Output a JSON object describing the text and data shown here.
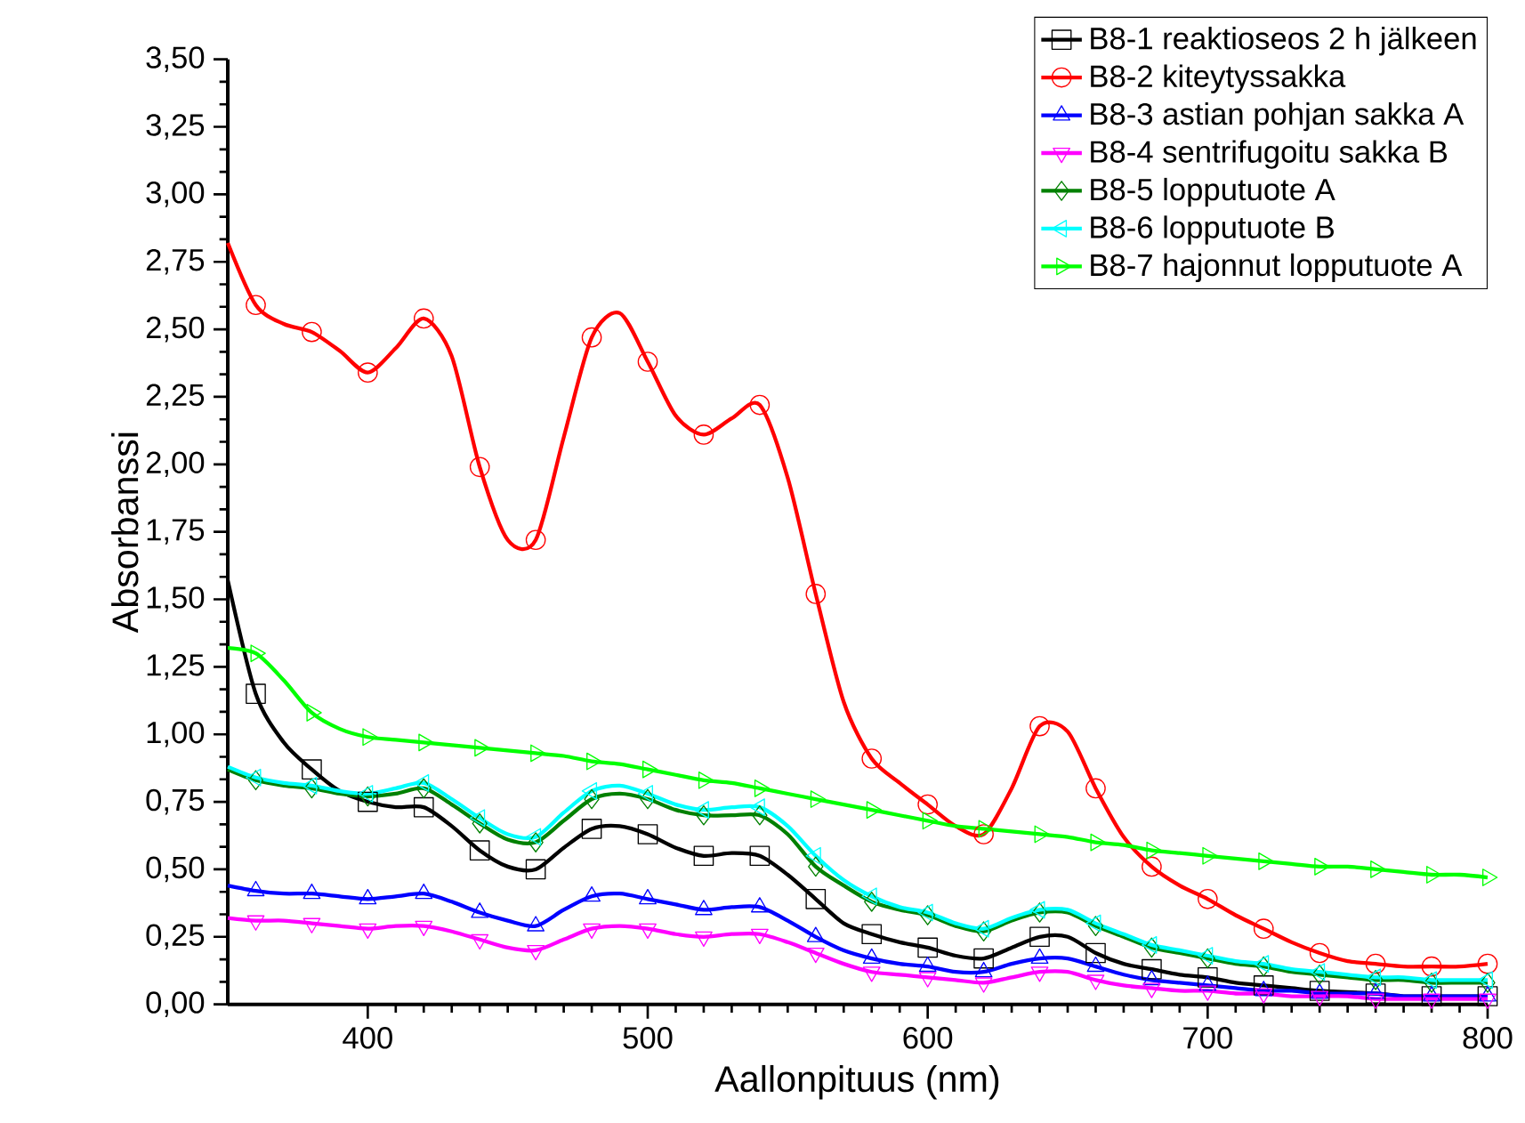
{
  "chart_data": {
    "type": "line",
    "xlabel": "Aallonpituus (nm)",
    "ylabel": "Absorbanssi",
    "x": [
      350,
      360,
      370,
      380,
      390,
      400,
      410,
      420,
      430,
      440,
      450,
      460,
      470,
      480,
      490,
      500,
      510,
      520,
      530,
      540,
      550,
      560,
      570,
      580,
      590,
      600,
      610,
      620,
      630,
      640,
      650,
      660,
      670,
      680,
      690,
      700,
      710,
      720,
      730,
      740,
      750,
      760,
      770,
      780,
      790,
      800
    ],
    "series": [
      {
        "name": "B8-1 reaktioseos 2 h jälkeen",
        "color": "#000000",
        "marker": "square",
        "values": [
          1.57,
          1.15,
          0.97,
          0.87,
          0.79,
          0.75,
          0.73,
          0.73,
          0.66,
          0.57,
          0.51,
          0.5,
          0.58,
          0.65,
          0.66,
          0.63,
          0.58,
          0.55,
          0.56,
          0.55,
          0.48,
          0.39,
          0.3,
          0.26,
          0.23,
          0.21,
          0.18,
          0.17,
          0.21,
          0.25,
          0.25,
          0.19,
          0.15,
          0.13,
          0.11,
          0.1,
          0.08,
          0.07,
          0.06,
          0.05,
          null,
          0.04,
          0.03,
          0.03,
          0.03,
          0.03
        ]
      },
      {
        "name": "B8-2 kiteytyssakka",
        "color": "#ff0000",
        "marker": "circle",
        "values": [
          2.82,
          2.59,
          2.52,
          2.49,
          2.42,
          2.34,
          2.43,
          2.54,
          2.4,
          1.99,
          1.72,
          1.72,
          2.1,
          2.47,
          2.56,
          2.38,
          2.18,
          2.11,
          2.17,
          2.22,
          1.95,
          1.52,
          1.12,
          0.91,
          0.82,
          0.74,
          0.66,
          0.63,
          0.8,
          1.03,
          1.01,
          0.8,
          0.62,
          0.51,
          0.44,
          0.39,
          0.33,
          0.28,
          0.23,
          0.19,
          0.16,
          0.15,
          0.14,
          0.14,
          0.14,
          0.15
        ]
      },
      {
        "name": "B8-3 astian pohjan sakka A",
        "color": "#0000ff",
        "marker": "triangle",
        "values": [
          0.44,
          0.42,
          0.41,
          0.41,
          0.4,
          0.39,
          0.4,
          0.41,
          0.38,
          0.34,
          0.31,
          0.29,
          0.35,
          0.4,
          0.41,
          0.39,
          0.37,
          0.35,
          0.36,
          0.36,
          0.31,
          0.25,
          0.2,
          0.17,
          0.15,
          0.14,
          0.12,
          0.12,
          0.15,
          0.17,
          0.17,
          0.14,
          0.11,
          0.09,
          0.08,
          0.07,
          0.06,
          0.05,
          0.05,
          0.04,
          0.04,
          0.04,
          0.03,
          0.03,
          0.03,
          0.03
        ]
      },
      {
        "name": "B8-4 sentrifugoitu sakka B",
        "color": "#ff00ff",
        "marker": "triangle-down",
        "values": [
          0.32,
          0.31,
          0.31,
          0.3,
          0.29,
          0.28,
          0.29,
          0.29,
          0.27,
          0.24,
          0.21,
          0.2,
          0.24,
          0.28,
          0.29,
          0.28,
          0.26,
          0.25,
          0.26,
          0.26,
          0.23,
          0.19,
          0.15,
          0.12,
          0.11,
          0.1,
          0.09,
          0.08,
          0.1,
          0.12,
          0.12,
          0.09,
          0.07,
          0.06,
          0.05,
          0.05,
          0.04,
          0.04,
          0.03,
          0.03,
          0.03,
          0.02,
          0.02,
          0.02,
          0.02,
          0.02
        ]
      },
      {
        "name": "B8-5 lopputuote A",
        "color": "#008000",
        "marker": "diamond",
        "values": [
          0.87,
          0.83,
          0.81,
          0.8,
          0.78,
          0.77,
          0.78,
          0.8,
          0.74,
          0.67,
          0.61,
          0.6,
          0.68,
          0.76,
          0.78,
          0.76,
          0.72,
          0.7,
          0.7,
          0.7,
          0.63,
          0.51,
          0.44,
          0.38,
          0.35,
          0.33,
          0.29,
          0.27,
          0.31,
          0.34,
          0.34,
          0.29,
          0.25,
          0.21,
          0.19,
          0.17,
          0.15,
          0.14,
          0.12,
          0.11,
          0.1,
          0.09,
          0.09,
          0.08,
          0.08,
          0.08
        ]
      },
      {
        "name": "B8-6 lopputuote B",
        "color": "#00ffff",
        "marker": "triangle-left",
        "values": [
          0.88,
          0.84,
          0.82,
          0.81,
          0.79,
          0.78,
          0.8,
          0.82,
          0.76,
          0.69,
          0.63,
          0.62,
          0.71,
          0.79,
          0.81,
          0.78,
          0.74,
          0.72,
          0.73,
          0.73,
          0.66,
          0.55,
          0.46,
          0.4,
          0.36,
          0.34,
          0.3,
          0.28,
          0.32,
          0.35,
          0.35,
          0.3,
          0.26,
          0.22,
          0.2,
          0.18,
          0.16,
          0.15,
          0.13,
          0.12,
          0.11,
          0.1,
          0.1,
          0.09,
          0.09,
          0.09
        ]
      },
      {
        "name": "B8-7 hajonnut lopputuote A",
        "color": "#00ff00",
        "marker": "triangle-right",
        "values": [
          1.32,
          1.3,
          1.2,
          1.08,
          1.02,
          0.99,
          0.98,
          0.97,
          0.96,
          0.95,
          0.94,
          0.93,
          0.92,
          0.9,
          0.89,
          0.87,
          0.85,
          0.83,
          0.82,
          0.8,
          0.78,
          0.76,
          0.74,
          0.72,
          0.7,
          0.68,
          0.66,
          0.65,
          0.64,
          0.63,
          0.62,
          0.6,
          0.59,
          0.57,
          0.56,
          0.55,
          0.54,
          0.53,
          0.52,
          0.51,
          0.51,
          0.5,
          0.49,
          0.48,
          0.48,
          0.47
        ]
      }
    ],
    "xlim": [
      350,
      800
    ],
    "ylim": [
      0,
      3.5
    ],
    "xticks": [
      400,
      500,
      600,
      700,
      800
    ],
    "yticks": [
      {
        "value": 0,
        "label": "0,00"
      },
      {
        "value": 0.25,
        "label": "0,25"
      },
      {
        "value": 0.5,
        "label": "0,50"
      },
      {
        "value": 0.75,
        "label": "0,75"
      },
      {
        "value": 1,
        "label": "1,00"
      },
      {
        "value": 1.25,
        "label": "1,25"
      },
      {
        "value": 1.5,
        "label": "1,50"
      },
      {
        "value": 1.75,
        "label": "1,75"
      },
      {
        "value": 2,
        "label": "2,00"
      },
      {
        "value": 2.25,
        "label": "2,25"
      },
      {
        "value": 2.5,
        "label": "2,50"
      },
      {
        "value": 2.75,
        "label": "2,75"
      },
      {
        "value": 3,
        "label": "3,00"
      },
      {
        "value": 3.25,
        "label": "3,25"
      },
      {
        "value": 3.5,
        "label": "3,50"
      }
    ],
    "grid": false,
    "legend": "top right",
    "line_style": "solid"
  }
}
